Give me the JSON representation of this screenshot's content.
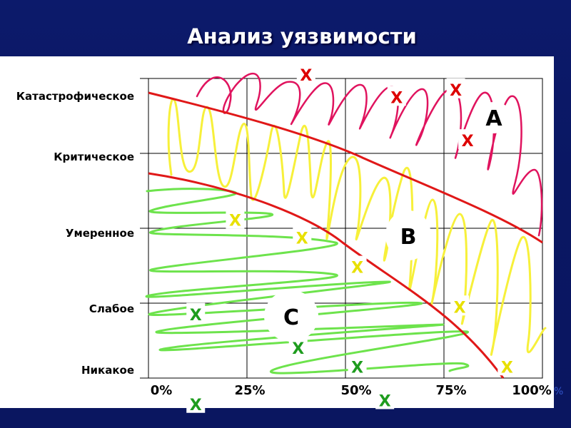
{
  "slide": {
    "title": "Анализ уязвимости"
  },
  "colors": {
    "background": "#0c1a6b",
    "boundary_lines": "#e01818",
    "zone_a_hatch": "#e0135e",
    "zone_b_hatch": "#f7f03a",
    "zone_c_hatch": "#6de34c",
    "red_marks": "#dd0000",
    "yellow_marks": "#e8e000",
    "green_marks": "#1e9c1e"
  },
  "chart_data": {
    "type": "diagram",
    "y_axis": {
      "labels": [
        "Катастрофическое",
        "Критическое",
        "Умеренное",
        "Слабое",
        "Никакое"
      ]
    },
    "x_axis": {
      "labels": [
        "0%",
        "25%",
        "50%",
        "75%",
        "100%"
      ],
      "unit_suffix": "%"
    },
    "grid": true,
    "zones": [
      {
        "label": "A",
        "color": "pink"
      },
      {
        "label": "B",
        "color": "yellow"
      },
      {
        "label": "C",
        "color": "green"
      }
    ],
    "marks": {
      "symbol": "X",
      "zone_a": [
        {
          "x": 40,
          "y": 1.05
        },
        {
          "x": 63,
          "y": 0.75
        },
        {
          "x": 78,
          "y": 0.85
        },
        {
          "x": 81,
          "y": 0.17
        }
      ],
      "zone_b": [
        {
          "x": 22,
          "y": 0.11
        },
        {
          "x": 39,
          "y": -0.13
        },
        {
          "x": 53,
          "y": -0.52
        },
        {
          "x": 79,
          "y": -1.05
        },
        {
          "x": 91,
          "y": -1.85
        }
      ],
      "zone_c": [
        {
          "x": 12,
          "y": -1.15
        },
        {
          "x": 38,
          "y": -1.6
        },
        {
          "x": 53,
          "y": -1.85
        },
        {
          "x": 60,
          "y": -2.3
        },
        {
          "x": 12,
          "y": -2.35
        }
      ]
    }
  }
}
